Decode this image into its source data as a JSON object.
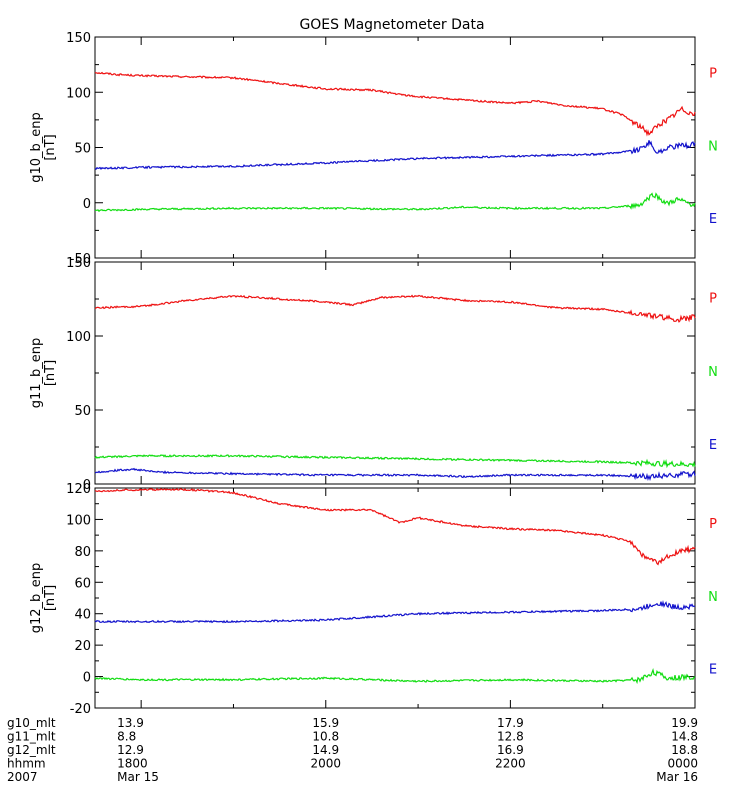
{
  "colors": {
    "p": "#ee1111",
    "n": "#11dd11",
    "e": "#1111cc",
    "axis": "#000000"
  },
  "chart_data": {
    "type": "line",
    "title": "GOES Magnetometer Data",
    "xrange_hours": [
      17.5,
      24.0
    ],
    "panels": [
      {
        "ylabel": "g10_b_enp",
        "units": "[nT]",
        "ylim": [
          -50,
          150
        ],
        "yticks": [
          -50,
          0,
          50,
          100,
          150
        ],
        "legend": [
          "P",
          "N",
          "E"
        ],
        "series": [
          {
            "name": "P",
            "key": "p",
            "x": [
              17.5,
              17.75,
              18.0,
              18.5,
              19.0,
              19.3,
              19.7,
              20.0,
              20.5,
              20.8,
              21.0,
              21.5,
              22.0,
              22.3,
              22.6,
              23.0,
              23.2,
              23.35,
              23.5,
              23.6,
              23.75,
              23.85,
              24.0
            ],
            "y": [
              118,
              116,
              115,
              114,
              113,
              110,
              106,
              103,
              102,
              98,
              96,
              93,
              90,
              92,
              88,
              85,
              80,
              72,
              63,
              70,
              78,
              85,
              80
            ]
          },
          {
            "name": "N",
            "key": "n",
            "x": [
              17.5,
              18.0,
              19.0,
              20.0,
              21.0,
              21.5,
              22.0,
              23.0,
              23.4,
              23.55,
              23.7,
              23.8,
              24.0
            ],
            "y": [
              -7,
              -6,
              -5,
              -5,
              -6,
              -4,
              -5,
              -5,
              -2,
              8,
              -1,
              3,
              -2
            ]
          },
          {
            "name": "E",
            "key": "e",
            "x": [
              17.5,
              18.0,
              19.0,
              20.0,
              21.0,
              22.0,
              23.0,
              23.4,
              23.5,
              23.6,
              23.7,
              24.0
            ],
            "y": [
              31,
              32,
              33,
              36,
              40,
              42,
              44,
              48,
              55,
              45,
              50,
              53
            ]
          }
        ]
      },
      {
        "ylabel": "g11_b_enp",
        "units": "[nT]",
        "ylim": [
          0,
          150
        ],
        "yticks": [
          0,
          50,
          100,
          150
        ],
        "legend": [
          "P",
          "N",
          "E"
        ],
        "series": [
          {
            "name": "P",
            "key": "p",
            "x": [
              17.5,
              18.0,
              18.5,
              19.0,
              19.5,
              20.0,
              20.3,
              20.6,
              21.0,
              21.5,
              22.0,
              22.5,
              23.0,
              23.5,
              23.8,
              24.0
            ],
            "y": [
              119,
              120,
              124,
              127,
              125,
              123,
              121,
              126,
              127,
              124,
              123,
              119,
              118,
              114,
              111,
              113
            ]
          },
          {
            "name": "N",
            "key": "n",
            "x": [
              17.5,
              18.0,
              19.0,
              20.0,
              21.0,
              22.0,
              23.0,
              24.0
            ],
            "y": [
              18,
              19,
              19,
              18,
              17,
              16,
              15,
              13
            ]
          },
          {
            "name": "E",
            "key": "e",
            "x": [
              17.5,
              17.9,
              18.2,
              19.0,
              20.0,
              21.0,
              21.5,
              22.0,
              23.0,
              23.5,
              24.0
            ],
            "y": [
              8,
              10,
              8,
              7,
              6,
              6,
              5,
              6,
              6,
              5,
              7
            ]
          }
        ]
      },
      {
        "ylabel": "g12_b_enp",
        "units": "[nT]",
        "ylim": [
          -20,
          120
        ],
        "yticks": [
          -20,
          0,
          20,
          40,
          60,
          80,
          100,
          120
        ],
        "legend": [
          "P",
          "N",
          "E"
        ],
        "series": [
          {
            "name": "P",
            "key": "p",
            "x": [
              17.5,
              18.0,
              18.5,
              19.0,
              19.5,
              20.0,
              20.5,
              20.8,
              21.0,
              21.5,
              22.0,
              22.5,
              23.0,
              23.3,
              23.45,
              23.6,
              23.75,
              24.0
            ],
            "y": [
              118,
              119,
              119,
              117,
              110,
              106,
              106,
              98,
              101,
              96,
              94,
              93,
              90,
              86,
              76,
              72,
              78,
              82
            ]
          },
          {
            "name": "N",
            "key": "n",
            "x": [
              17.5,
              18.0,
              19.0,
              20.0,
              21.0,
              22.0,
              23.0,
              23.4,
              23.55,
              23.7,
              24.0
            ],
            "y": [
              -1,
              -2,
              -2,
              -1,
              -3,
              -2,
              -3,
              -2,
              3,
              -1,
              0
            ]
          },
          {
            "name": "E",
            "key": "e",
            "x": [
              17.5,
              18.0,
              19.0,
              20.0,
              20.5,
              21.0,
              22.0,
              23.0,
              23.4,
              23.6,
              23.8,
              24.0
            ],
            "y": [
              35,
              35,
              35,
              36,
              38,
              40,
              41,
              42,
              43,
              47,
              44,
              45
            ]
          }
        ]
      }
    ],
    "xaxis_rows": [
      {
        "label": "g10_mlt",
        "values": [
          "13.9",
          "15.9",
          "17.9",
          "19.9"
        ]
      },
      {
        "label": "g11_mlt",
        "values": [
          "8.8",
          "10.8",
          "12.8",
          "14.8"
        ]
      },
      {
        "label": "g12_mlt",
        "values": [
          "12.9",
          "14.9",
          "16.9",
          "18.8"
        ]
      },
      {
        "label": "hhmm",
        "values": [
          "1800",
          "2000",
          "2200",
          "0000"
        ]
      },
      {
        "label": "2007",
        "values": [
          "Mar 15",
          "",
          "",
          "Mar 16"
        ]
      }
    ],
    "major_tick_hours": [
      18,
      20,
      22,
      24
    ],
    "minor_tick_hours": [
      19,
      21,
      23
    ]
  }
}
